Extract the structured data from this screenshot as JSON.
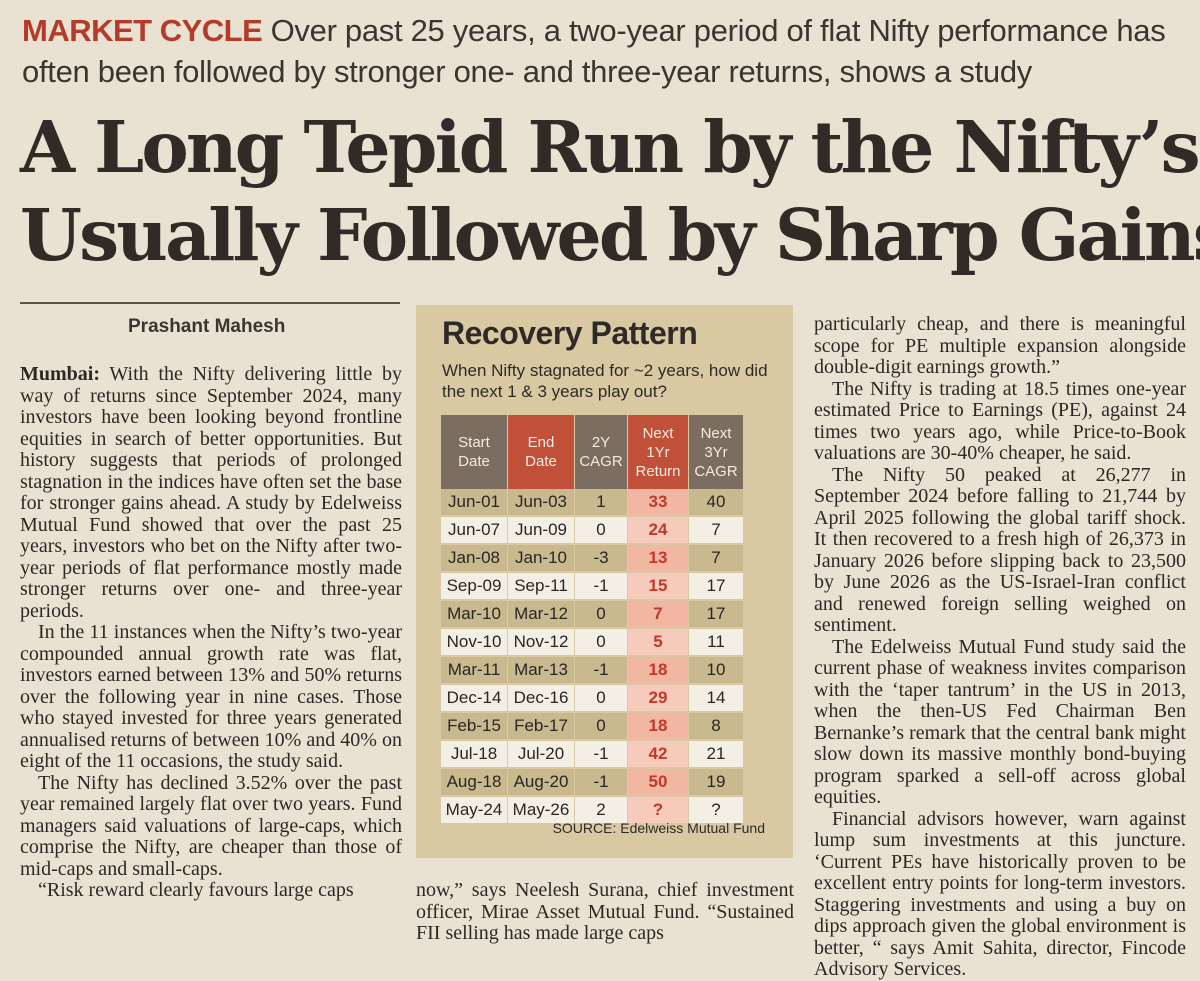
{
  "kicker": {
    "tag": "MARKET CYCLE",
    "text": "Over past 25 years, a two-year period of flat Nifty performance has often been followed by stronger one- and three-year returns, shows a study"
  },
  "headline": {
    "line1": "A Long Tepid Run by the Nifty’s",
    "line2": "Usually Followed by Sharp Gains"
  },
  "byline": "Prashant Mahesh",
  "col1": {
    "dateline": "Mumbai:",
    "p1": " With the Nifty delivering little by way of returns since September 2024, many investors have been looking beyond frontline equities in search of better opportunities. But history suggests that periods of prolonged stagnation in the indices have often set the base for stronger gains ahead. A study by Edelweiss Mutual Fund showed that over the past 25 years, investors who bet on the Nifty after two-year periods of flat performance mostly made stronger returns over one- and three-year periods.",
    "p2": "In the 11 instances when the Nifty’s two-year compounded annual growth rate was flat, investors earned between 13% and 50% returns over the following year in nine cases. Those who stayed invested for three years generated annualised returns of between 10% and 40% on eight of the 11 occasions, the study said.",
    "p3": "The Nifty has declined 3.52% over the past year remained largely flat over two years. Fund managers said valuations of large-caps, which comprise the Nifty, are cheaper than those of mid-caps and small-caps.",
    "p4": "“Risk reward clearly favours large caps"
  },
  "col2": {
    "p1": "now,” says Neelesh Surana, chief investment officer, Mirae Asset Mutual Fund. “Sustained FII selling has made large caps"
  },
  "col3": {
    "p1": "particularly cheap, and there is meaningful scope for PE multiple expansion alongside double-digit earnings growth.”",
    "p2": "The Nifty is trading at 18.5 times one-year estimated Price to Earnings (PE), against 24 times two years ago, while Price-to-Book valuations are 30-40% cheaper, he said.",
    "p3": "The Nifty 50 peaked at 26,277 in September 2024 before falling to 21,744 by April 2025 following the global tariff shock. It then recovered to a fresh high of 26,373 in January 2026 before slipping back to 23,500 by June 2026 as the US-Israel-Iran conflict and renewed foreign selling weighed on sentiment.",
    "p4": "The Edelweiss Mutual Fund study said the current phase of weakness invites comparison with the ‘taper tantrum’ in the US in 2013, when the then-US Fed Chairman Ben Bernanke’s remark that the central bank might slow down its massive monthly bond-buying program sparked a sell-off across global equities.",
    "p5": "Financial advisors however, warn against lump sum investments at this juncture. ‘Current PEs have historically proven to be excellent entry points for long-term investors. Staggering investments and using a buy on dips approach given the global environment is better, “ says Amit Sahita, director, Fincode Advisory Services."
  },
  "table": {
    "title": "Recovery Pattern",
    "subtitle": "When Nifty stagnated for ~2 years, how did the next 1 & 3 years play out?",
    "source": "SOURCE: Edelweiss Mutual Fund",
    "header_colors": [
      "#7b6d62",
      "#c0503a",
      "#7b6d62",
      "#c0503a",
      "#7b6d62"
    ],
    "headers": [
      "Start\nDate",
      "End\nDate",
      "2Y\nCAGR",
      "Next\n1Yr\nReturn",
      "Next\n3Yr\nCAGR"
    ],
    "rows": [
      [
        "Jun-01",
        "Jun-03",
        "1",
        "33",
        "40"
      ],
      [
        "Jun-07",
        "Jun-09",
        "0",
        "24",
        "7"
      ],
      [
        "Jan-08",
        "Jan-10",
        "-3",
        "13",
        "7"
      ],
      [
        "Sep-09",
        "Sep-11",
        "-1",
        "15",
        "17"
      ],
      [
        "Mar-10",
        "Mar-12",
        "0",
        "7",
        "17"
      ],
      [
        "Nov-10",
        "Nov-12",
        "0",
        "5",
        "11"
      ],
      [
        "Mar-11",
        "Mar-13",
        "-1",
        "18",
        "10"
      ],
      [
        "Dec-14",
        "Dec-16",
        "0",
        "29",
        "14"
      ],
      [
        "Feb-15",
        "Feb-17",
        "0",
        "18",
        "8"
      ],
      [
        "Jul-18",
        "Jul-20",
        "-1",
        "42",
        "21"
      ],
      [
        "Aug-18",
        "Aug-20",
        "-1",
        "50",
        "19"
      ],
      [
        "May-24",
        "May-26",
        "2",
        "?",
        "?"
      ]
    ]
  }
}
